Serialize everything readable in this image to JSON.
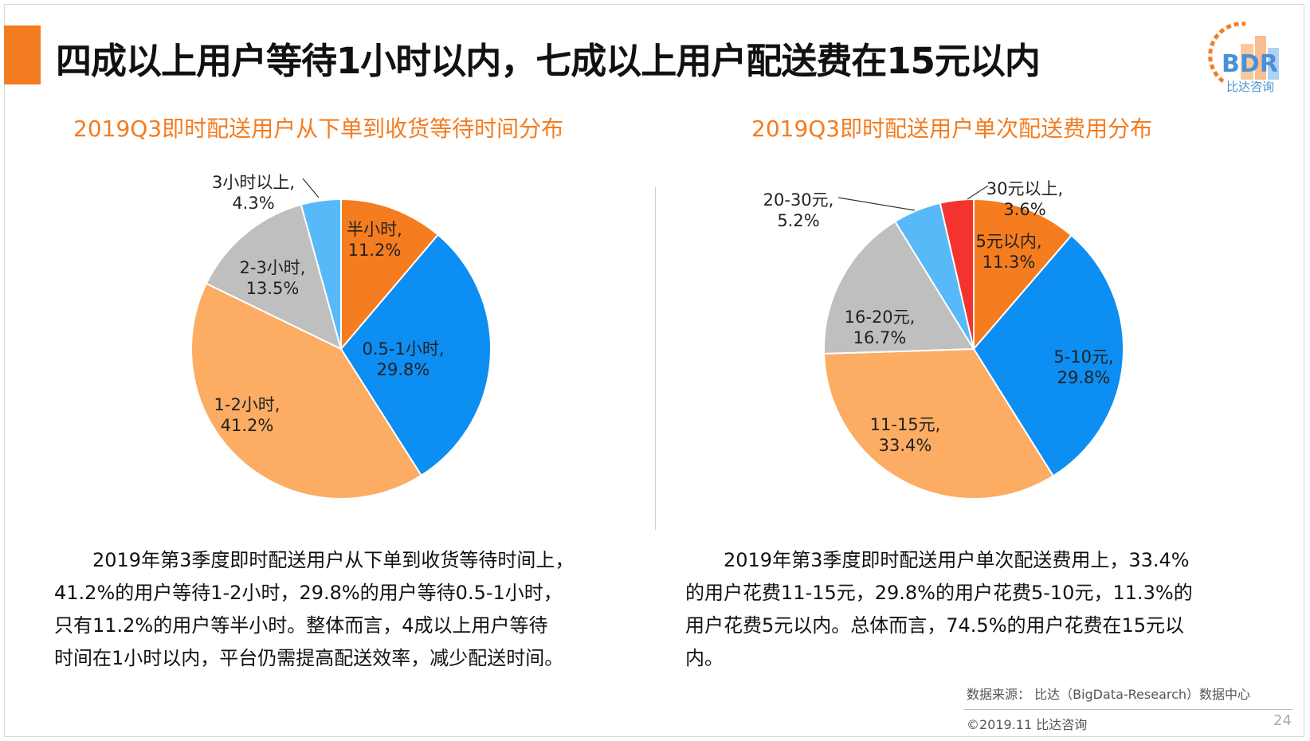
{
  "header": {
    "title": "四成以上用户等待1小时以内，七成以上用户配送费在15元以内",
    "logo_text": "BDR",
    "logo_caption": "比达咨询"
  },
  "chart_data": [
    {
      "type": "pie",
      "title": "2019Q3即时配送用户从下单到收货等待时间分布",
      "categories": [
        "半小时,",
        "0.5-1小时,",
        "1-2小时,",
        "2-3小时,",
        "3小时以上,"
      ],
      "values": [
        11.2,
        29.8,
        41.2,
        13.5,
        4.3
      ],
      "value_labels": [
        "11.2%",
        "29.8%",
        "41.2%",
        "13.5%",
        "4.3%"
      ],
      "colors": [
        "#f57c1f",
        "#0d8ef2",
        "#fcac63",
        "#bfbfbf",
        "#57b9f7"
      ],
      "start": "12 o'clock, clockwise"
    },
    {
      "type": "pie",
      "title": "2019Q3即时配送用户单次配送费用分布",
      "categories": [
        "5元以内,",
        "5-10元,",
        "11-15元,",
        "16-20元,",
        "20-30元,",
        "30元以上,"
      ],
      "values": [
        11.3,
        29.8,
        33.4,
        16.7,
        5.2,
        3.6
      ],
      "value_labels": [
        "11.3%",
        "29.8%",
        "33.4%",
        "16.7%",
        "5.2%",
        "3.6%"
      ],
      "colors": [
        "#f57c1f",
        "#0d8ef2",
        "#fcac63",
        "#bfbfbf",
        "#57b9f7",
        "#f5332e"
      ],
      "start": "12 o'clock, clockwise"
    }
  ],
  "text1": {
    "line1": "　　2019年第3季度即时配送用户从下单到收货等待时间上，",
    "line2": "41.2%的用户等待1-2小时，29.8%的用户等待0.5-1小时，",
    "line3": "只有11.2%的用户等半小时。整体而言，4成以上用户等待",
    "line4": "时间在1小时以内，平台仍需提高配送效率，减少配送时间。"
  },
  "text2": {
    "line1": "　　2019年第3季度即时配送用户单次配送费用上，33.4%",
    "line2": "的用户花费11-15元，29.8%的用户花费5-10元，11.3%的",
    "line3": "用户花费5元以内。总体而言，74.5%的用户花费在15元以",
    "line4": "内。"
  },
  "footer": {
    "source": "数据来源： 比达（BigData-Research）数据中心",
    "copyright": "©2019.11  比达咨询",
    "page": "24"
  }
}
